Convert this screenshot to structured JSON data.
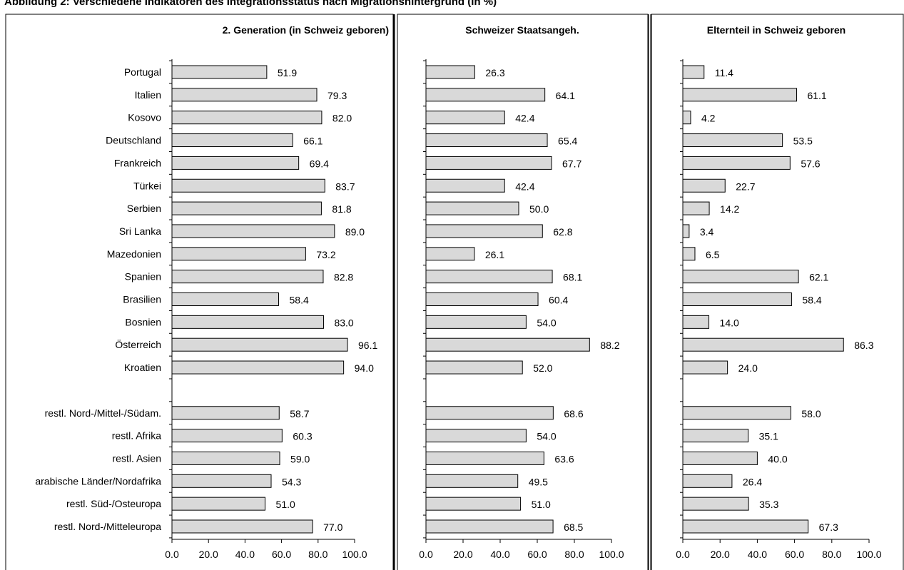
{
  "figure": {
    "title": "Abbildung 2: Verschiedene Indikatoren des Integrationsstatus nach Migrationshintergrund (in %)"
  },
  "colors": {
    "bar_fill": "#d9d9d9",
    "bar_stroke": "#000000",
    "frame": "#000000"
  },
  "chart_data": [
    {
      "type": "bar",
      "orientation": "horizontal",
      "title": "2. Generation (in Schweiz geboren)",
      "categories": [
        "Portugal",
        "Italien",
        "Kosovo",
        "Deutschland",
        "Frankreich",
        "Türkei",
        "Serbien",
        "Sri Lanka",
        "Mazedonien",
        "Spanien",
        "Brasilien",
        "Bosnien",
        "Österreich",
        "Kroatien",
        "",
        "restl. Nord-/Mittel-/Südam.",
        "restl. Afrika",
        "restl. Asien",
        "arabische Länder/Nordafrika",
        "restl. Süd-/Osteuropa",
        "restl. Nord-/Mitteleuropa"
      ],
      "values": [
        51.9,
        79.3,
        82.0,
        66.1,
        69.4,
        83.7,
        81.8,
        89.0,
        73.2,
        82.8,
        58.4,
        83.0,
        96.1,
        94.0,
        null,
        58.7,
        60.3,
        59.0,
        54.3,
        51.0,
        77.0
      ],
      "value_labels": [
        "51.9",
        "79.3",
        "82.0",
        "66.1",
        "69.4",
        "83.7",
        "81.8",
        "89.0",
        "73.2",
        "82.8",
        "58.4",
        "83.0",
        "96.1",
        "94.0",
        "",
        "58.7",
        "60.3",
        "59.0",
        "54.3",
        "51.0",
        "77.0"
      ],
      "xlim": [
        0,
        100
      ],
      "xticks": [
        "0.0",
        "20.0",
        "40.0",
        "60.0",
        "80.0",
        "100.0"
      ],
      "grid": false
    },
    {
      "type": "bar",
      "orientation": "horizontal",
      "title": "Schweizer Staatsangeh.",
      "categories": [
        "Portugal",
        "Italien",
        "Kosovo",
        "Deutschland",
        "Frankreich",
        "Türkei",
        "Serbien",
        "Sri Lanka",
        "Mazedonien",
        "Spanien",
        "Brasilien",
        "Bosnien",
        "Österreich",
        "Kroatien",
        "",
        "restl. Nord-/Mittel-/Südam.",
        "restl. Afrika",
        "restl. Asien",
        "arabische Länder/Nordafrika",
        "restl. Süd-/Osteuropa",
        "restl. Nord-/Mitteleuropa"
      ],
      "values": [
        26.3,
        64.1,
        42.4,
        65.4,
        67.7,
        42.4,
        50.0,
        62.8,
        26.1,
        68.1,
        60.4,
        54.0,
        88.2,
        52.0,
        null,
        68.6,
        54.0,
        63.6,
        49.5,
        51.0,
        68.5
      ],
      "value_labels": [
        "26.3",
        "64.1",
        "42.4",
        "65.4",
        "67.7",
        "42.4",
        "50.0",
        "62.8",
        "26.1",
        "68.1",
        "60.4",
        "54.0",
        "88.2",
        "52.0",
        "",
        "68.6",
        "54.0",
        "63.6",
        "49.5",
        "51.0",
        "68.5"
      ],
      "xlim": [
        0,
        100
      ],
      "xticks": [
        "0.0",
        "20.0",
        "40.0",
        "60.0",
        "80.0",
        "100.0"
      ],
      "grid": false
    },
    {
      "type": "bar",
      "orientation": "horizontal",
      "title": "Elternteil in Schweiz geboren",
      "categories": [
        "Portugal",
        "Italien",
        "Kosovo",
        "Deutschland",
        "Frankreich",
        "Türkei",
        "Serbien",
        "Sri Lanka",
        "Mazedonien",
        "Spanien",
        "Brasilien",
        "Bosnien",
        "Österreich",
        "Kroatien",
        "",
        "restl. Nord-/Mittel-/Südam.",
        "restl. Afrika",
        "restl. Asien",
        "arabische Länder/Nordafrika",
        "restl. Süd-/Osteuropa",
        "restl. Nord-/Mitteleuropa"
      ],
      "values": [
        11.4,
        61.1,
        4.2,
        53.5,
        57.6,
        22.7,
        14.2,
        3.4,
        6.5,
        62.1,
        58.4,
        14.0,
        86.3,
        24.0,
        null,
        58.0,
        35.1,
        40.0,
        26.4,
        35.3,
        67.3
      ],
      "value_labels": [
        "11.4",
        "61.1",
        "4.2",
        "53.5",
        "57.6",
        "22.7",
        "14.2",
        "3.4",
        "6.5",
        "62.1",
        "58.4",
        "14.0",
        "86.3",
        "24.0",
        "",
        "58.0",
        "35.1",
        "40.0",
        "26.4",
        "35.3",
        "67.3"
      ],
      "xlim": [
        0,
        100
      ],
      "xticks": [
        "0.0",
        "20.0",
        "40.0",
        "60.0",
        "80.0",
        "100.0"
      ],
      "grid": false
    }
  ]
}
